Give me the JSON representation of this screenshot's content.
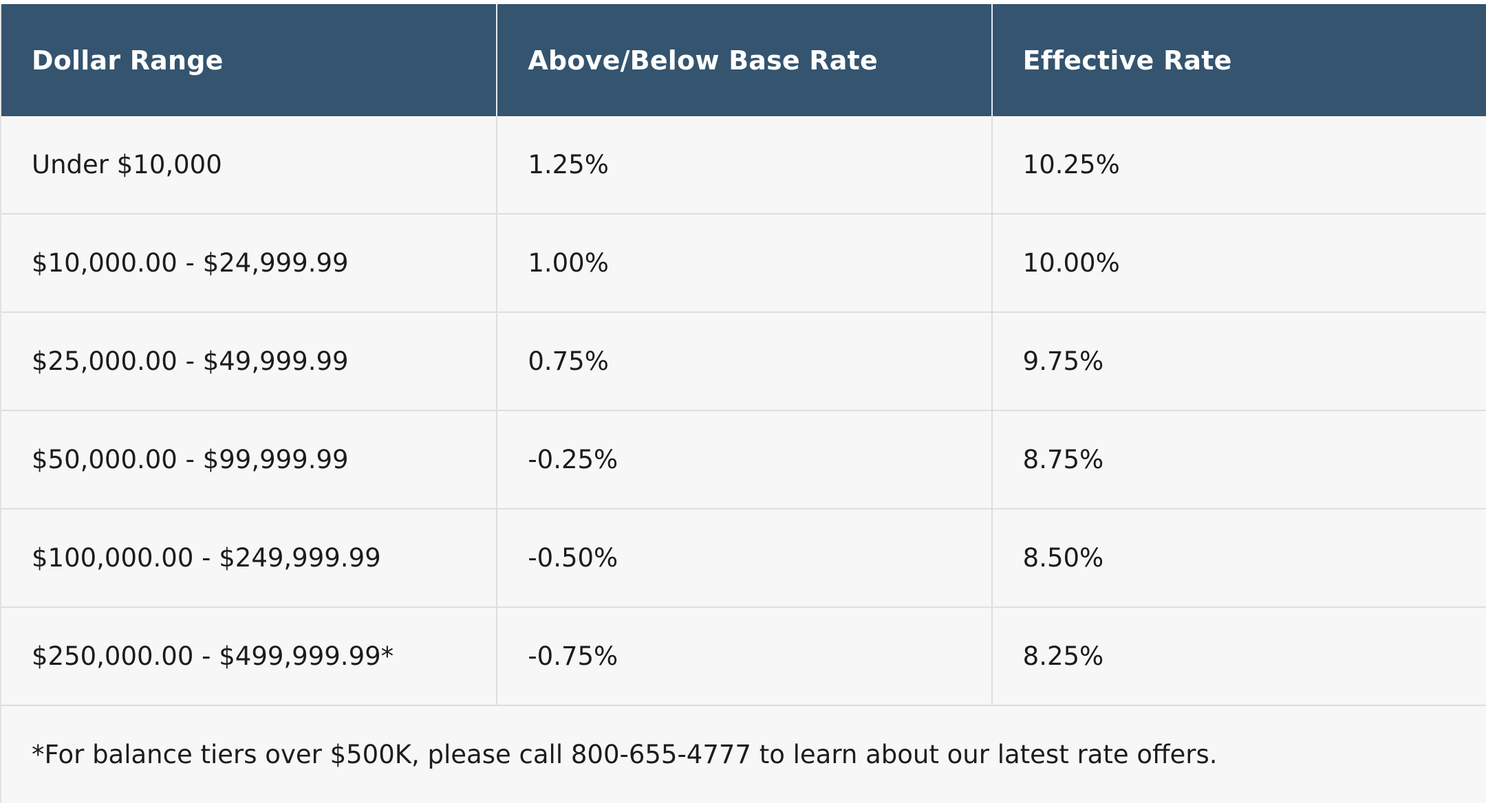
{
  "table": {
    "headers": [
      "Dollar Range",
      "Above/Below Base Rate",
      "Effective Rate"
    ],
    "rows": [
      [
        "Under $10,000",
        "1.25%",
        "10.25%"
      ],
      [
        "$10,000.00 - $24,999.99",
        "1.00%",
        "10.00%"
      ],
      [
        "$25,000.00 - $49,999.99",
        "0.75%",
        "9.75%"
      ],
      [
        "$50,000.00 - $99,999.99",
        "-0.25%",
        "8.75%"
      ],
      [
        "$100,000.00 - $249,999.99",
        "-0.50%",
        "8.50%"
      ],
      [
        "$250,000.00 - $499,999.99*",
        "-0.75%",
        "8.25%"
      ]
    ],
    "footnote": "*For balance tiers over $500K, please call 800-655-4777 to learn about our latest rate offers."
  },
  "colors": {
    "header_background": "#34546f",
    "header_text": "#ffffff",
    "row_background": "#f7f7f7",
    "grid_line": "#dedede"
  }
}
